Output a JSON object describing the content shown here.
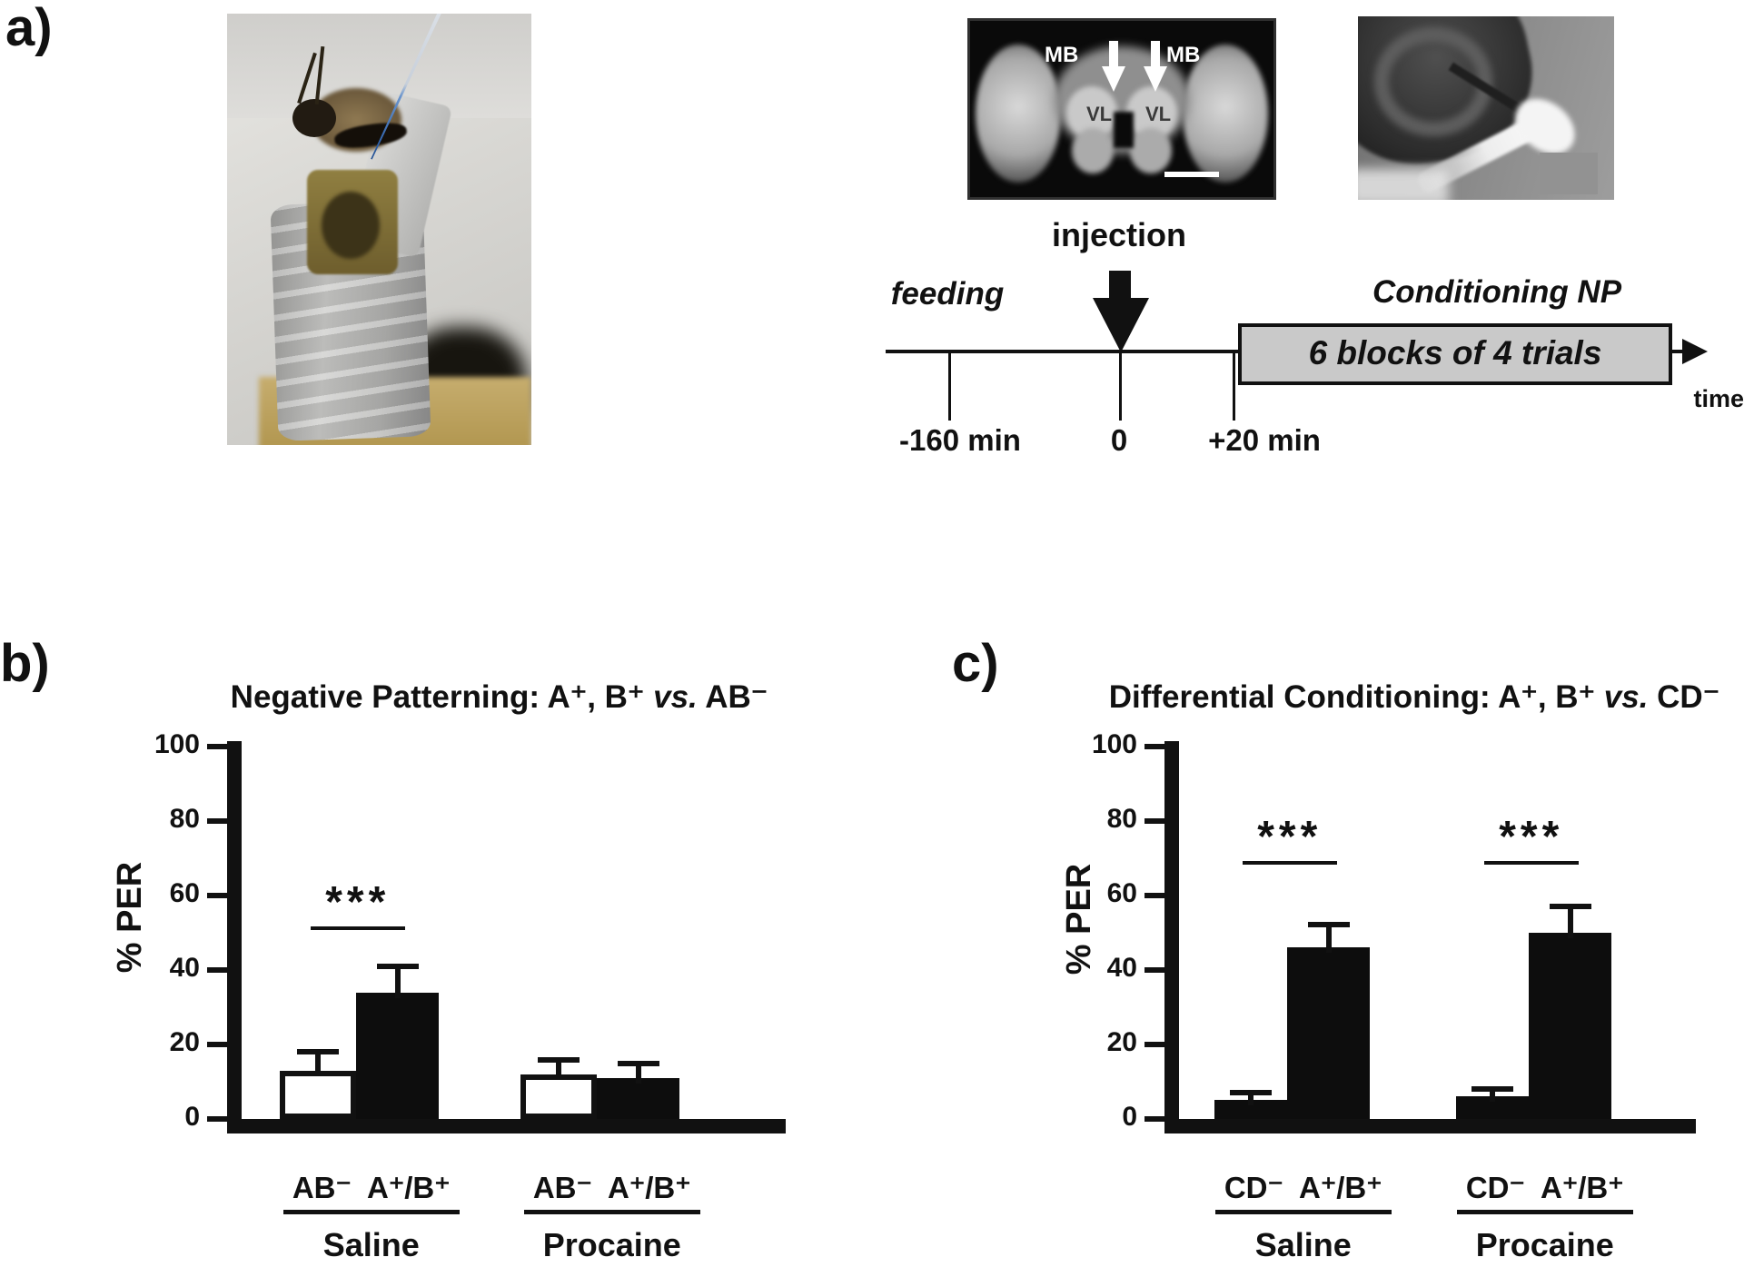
{
  "figure": {
    "panel_a_label": "a)",
    "panel_b_label": "b)",
    "panel_c_label": "c)"
  },
  "panel_a": {
    "brain_image": {
      "mb_left": "MB",
      "mb_right": "MB",
      "vl_left": "VL",
      "vl_right": "VL"
    },
    "injection_label": "injection",
    "timeline": {
      "feeding_label": "feeding",
      "conditioning_label": "Conditioning NP",
      "box_label": "6 blocks of 4 trials",
      "tick_labels": [
        "-160 min",
        "0",
        "+20 min"
      ],
      "time_label": "time"
    }
  },
  "chart_data": [
    {
      "id": "negative-patterning",
      "type": "bar",
      "title_pre": "Negative Patterning: A⁺, B⁺ ",
      "title_vs": "vs.",
      "title_post": " AB⁻",
      "ylabel": "% PER",
      "ylim": [
        0,
        100
      ],
      "yticks": [
        0,
        20,
        40,
        60,
        80,
        100
      ],
      "grid": false,
      "legend": null,
      "groups": [
        {
          "condition": "Saline",
          "pair_label": "AB⁻  A⁺/B⁺",
          "significance": "***",
          "bars": [
            {
              "label": "AB⁻",
              "value": 13,
              "error": 5,
              "fill": "white"
            },
            {
              "label": "A⁺/B⁺",
              "value": 34,
              "error": 7,
              "fill": "black"
            }
          ]
        },
        {
          "condition": "Procaine",
          "pair_label": "AB⁻  A⁺/B⁺",
          "significance": "",
          "bars": [
            {
              "label": "AB⁻",
              "value": 12,
              "error": 4,
              "fill": "white"
            },
            {
              "label": "A⁺/B⁺",
              "value": 11,
              "error": 4,
              "fill": "black"
            }
          ]
        }
      ]
    },
    {
      "id": "differential-conditioning",
      "type": "bar",
      "title_pre": "Differential Conditioning: A⁺, B⁺ ",
      "title_vs": "vs.",
      "title_post": " CD⁻",
      "ylabel": "% PER",
      "ylim": [
        0,
        100
      ],
      "yticks": [
        0,
        20,
        40,
        60,
        80,
        100
      ],
      "grid": false,
      "legend": null,
      "groups": [
        {
          "condition": "Saline",
          "pair_label": "CD⁻  A⁺/B⁺",
          "significance": "***",
          "bars": [
            {
              "label": "CD⁻",
              "value": 5,
              "error": 2,
              "fill": "black"
            },
            {
              "label": "A⁺/B⁺",
              "value": 46,
              "error": 6,
              "fill": "black"
            }
          ]
        },
        {
          "condition": "Procaine",
          "pair_label": "CD⁻  A⁺/B⁺",
          "significance": "***",
          "bars": [
            {
              "label": "CD⁻",
              "value": 6,
              "error": 2,
              "fill": "black"
            },
            {
              "label": "A⁺/B⁺",
              "value": 50,
              "error": 7,
              "fill": "black"
            }
          ]
        }
      ]
    }
  ],
  "colors": {
    "ink": "#111111",
    "bar_black": "#0d0d0d",
    "bar_white": "#ffffff",
    "timeline_box_fill": "#c9c9c9",
    "brain_background": "#0a0a0a",
    "pipette_blue": "#3366ae",
    "tape_silver": "#bcbcba",
    "brass": "#b1964f"
  }
}
